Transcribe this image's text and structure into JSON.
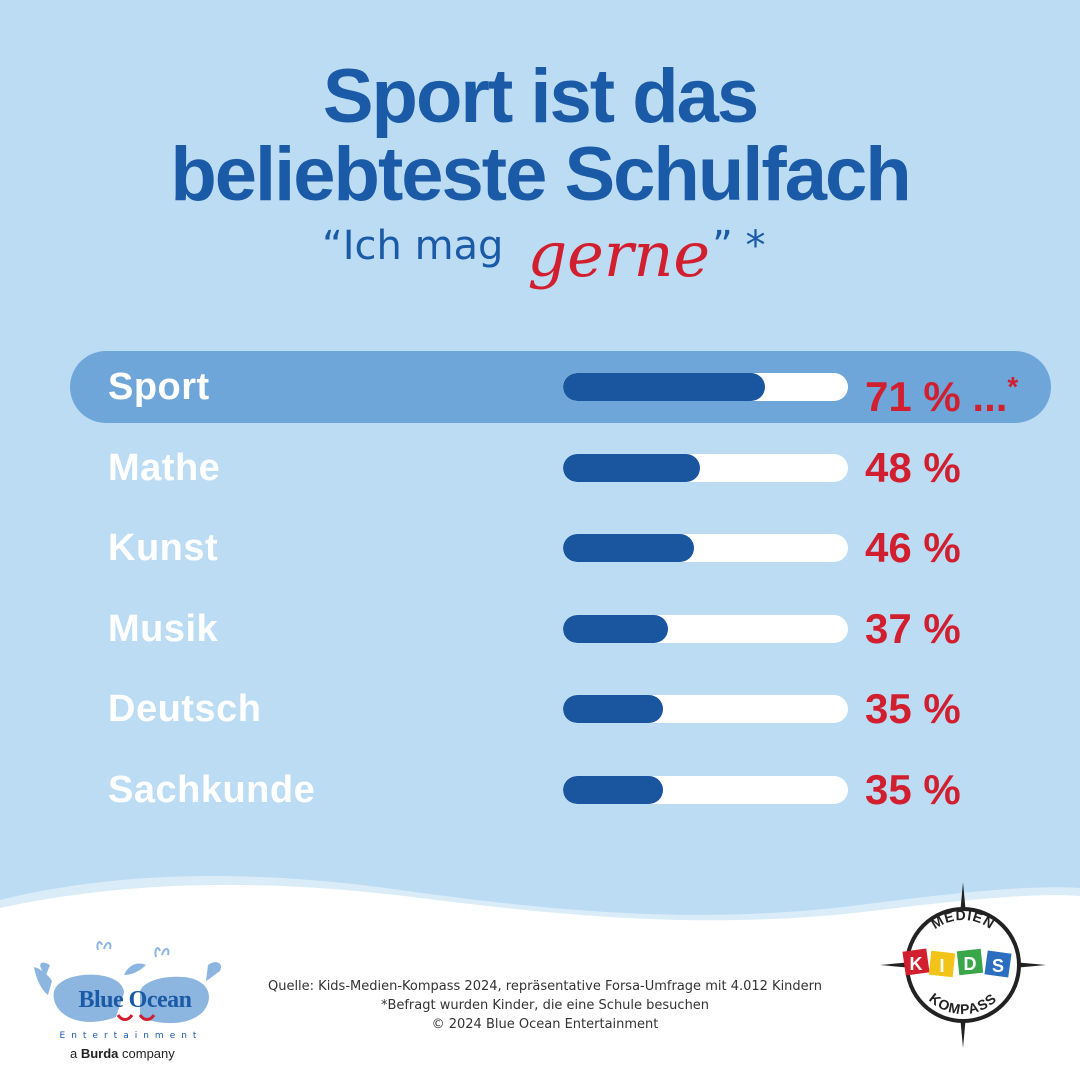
{
  "title": {
    "line1": "Sport ist das",
    "line2": "beliebteste Schulfach"
  },
  "subtitle": {
    "prefix": "“Ich mag",
    "script": "gerne",
    "suffix": "” *"
  },
  "chart_data": {
    "type": "bar",
    "orientation": "horizontal",
    "title": "Sport ist das beliebteste Schulfach",
    "subtitle": "“Ich mag gerne” *",
    "xlim": [
      0,
      100
    ],
    "unit": "%",
    "highlighted": "Sport",
    "categories": [
      "Sport",
      "Mathe",
      "Kunst",
      "Musik",
      "Deutsch",
      "Sachkunde"
    ],
    "values": [
      71,
      48,
      46,
      37,
      35,
      35
    ],
    "labels": [
      "71 %",
      "48 %",
      "46 %",
      "37 %",
      "35 %",
      "35 %"
    ],
    "first_label_suffix": " ...",
    "first_label_mark": "*"
  },
  "footer": {
    "source": "Quelle: Kids-Medien-Kompass 2024, repräsentative Forsa-Umfrage mit 4.012 Kindern",
    "note": "*Befragt wurden Kinder, die eine Schule besuchen",
    "copyright": "© 2024 Blue Ocean Entertainment"
  },
  "logos": {
    "left": {
      "name": "Blue Ocean",
      "word1": "Blue",
      "word2": "Ocean",
      "sub": "Entertainment",
      "byline_prefix": "a ",
      "byline_brand": "Burda",
      "byline_suffix": " company"
    },
    "right": {
      "top": "MEDIEN",
      "middle": [
        "K",
        "I",
        "D",
        "S"
      ],
      "bottom": "KOMPASS"
    }
  },
  "colors": {
    "background": "#bcdcf3",
    "title": "#1a5aa6",
    "accent": "#d11f2f",
    "bar": "#1a56a0",
    "highlight": "#6fa6d9"
  }
}
